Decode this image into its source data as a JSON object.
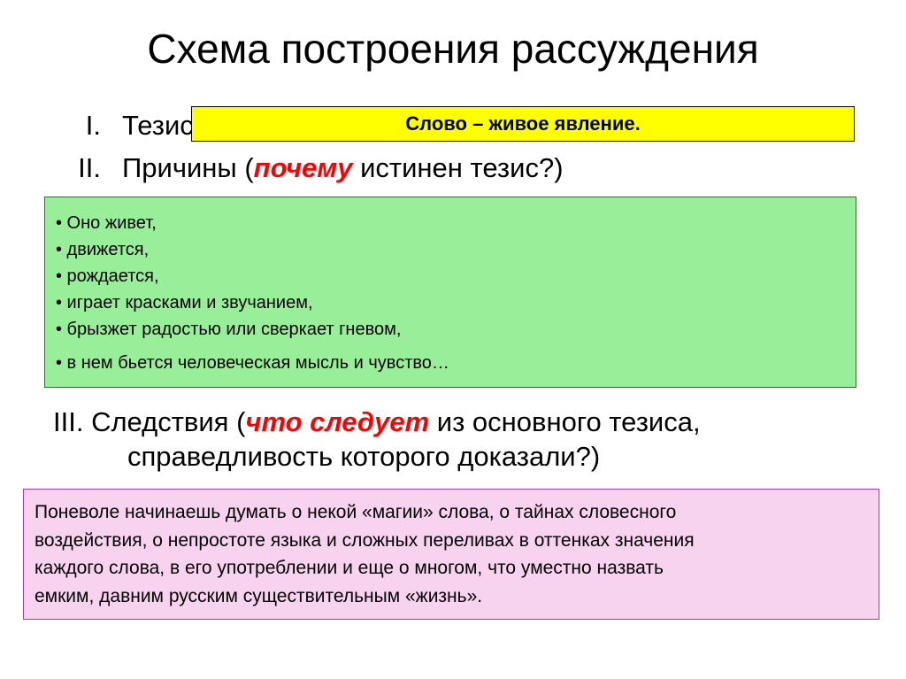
{
  "title": "Схема построения рассуждения",
  "section_I": {
    "numeral": "I.",
    "label": "Тезис"
  },
  "yellow_box": {
    "text": "Слово – живое явление.",
    "bg_color": "#ffff00",
    "border_color": "#000000",
    "font_size_pt": 22,
    "font_weight": "bold"
  },
  "section_II": {
    "numeral": "II.",
    "prefix": "Причины (",
    "emph": "почему",
    "suffix": " истинен тезис?)"
  },
  "green_box": {
    "bg_color": "#99ee99",
    "border_color": "#2f6f2f",
    "font_size_pt": 20,
    "bullets": [
      "• Оно живет,",
      "•  движется,",
      "•  рождается,",
      "•  играет красками и звучанием,",
      "•  брызжет радостью или сверкает гневом,",
      "• в нем бьется человеческая мысль и чувство…"
    ]
  },
  "section_III": {
    "line1_prefix": "III. Следствия (",
    "line1_emph": "что следует",
    "line1_suffix": " из основного тезиса,",
    "line2": "справедливость которого доказали?)"
  },
  "pink_box": {
    "bg_color": "#f7d3f0",
    "border_color": "#a040a0",
    "font_size_pt": 21,
    "lines": [
      "Поневоле начинаешь думать о некой «магии» слова, о тайнах словесного",
      "воздействия, о непростоте языка и сложных переливах в оттенках значения",
      " каждого слова, в его употреблении и еще о многом, что уместно назвать",
      " емким, давним русским существительным «жизнь»."
    ]
  },
  "colors": {
    "background": "#ffffff",
    "text": "#000000",
    "emph": "#ff0000"
  },
  "fonts": {
    "title_size_pt": 46,
    "body_size_pt": 31,
    "box_line_height": 1.5
  }
}
